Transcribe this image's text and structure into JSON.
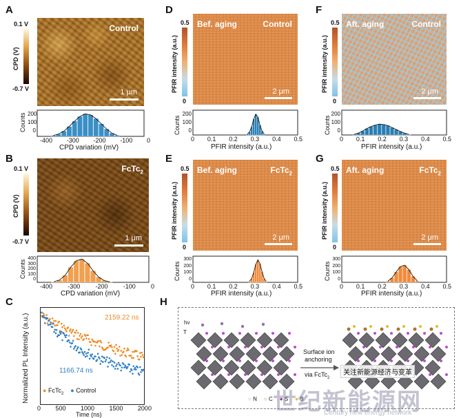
{
  "panels": {
    "A": {
      "letter": "A",
      "label": "Control",
      "scale": "1 μm",
      "cbar_top": "0.1 V",
      "cbar_bottom": "-0.7 V",
      "cbar_axis": "CPD (V)",
      "hist_ylabel": "Counts",
      "hist_xlabel": "CPD variation (mV)",
      "yticks": [
        "200",
        "100",
        "0"
      ],
      "xticks": [
        "-400",
        "-300",
        "-200",
        "-100",
        "0"
      ]
    },
    "B": {
      "letter": "B",
      "label": "FcTc",
      "label_sub": "2",
      "scale": "1 μm",
      "cbar_top": "0.1 V",
      "cbar_bottom": "-0.7 V",
      "cbar_axis": "CPD (V)",
      "hist_ylabel": "Counts",
      "hist_xlabel": "CPD variation (mV)",
      "yticks": [
        "400",
        "300",
        "200",
        "100",
        "0"
      ],
      "xticks": [
        "-400",
        "-300",
        "-200",
        "-100",
        "0"
      ]
    },
    "D": {
      "letter": "D",
      "label_left": "Bef. aging",
      "label_right": "Control",
      "scale": "2 μm",
      "cbar_top": "0.5",
      "cbar_bottom": "0",
      "cbar_axis": "PFIR intensity (a.u.)",
      "hist_ylabel": "Counts",
      "hist_xlabel": "PFIR intensity (a.u.)",
      "yticks": [
        "200",
        "100",
        "0"
      ],
      "xticks": [
        "0",
        "0.1",
        "0.2",
        "0.3",
        "0.4",
        "0.5"
      ]
    },
    "E": {
      "letter": "E",
      "label_left": "Bef. aging",
      "label_right": "FcTc",
      "label_sub": "2",
      "scale": "2 μm",
      "cbar_top": "0.5",
      "cbar_bottom": "0",
      "cbar_axis": "PFIR intensity (a.u.)",
      "hist_ylabel": "Counts",
      "hist_xlabel": "PFIR intensity (a.u.)",
      "yticks": [
        "300",
        "200",
        "100",
        "0"
      ],
      "xticks": [
        "0",
        "0.1",
        "0.2",
        "0.3",
        "0.4",
        "0.5"
      ]
    },
    "F": {
      "letter": "F",
      "label_left": "Aft. aging",
      "label_right": "Control",
      "scale": "2 μm",
      "cbar_top": "0.5",
      "cbar_bottom": "0",
      "cbar_axis": "PFIR intensity (a.u.)",
      "hist_ylabel": "Counts",
      "hist_xlabel": "PFIR intensity (a.u.)",
      "yticks": [
        "200",
        "100",
        "0"
      ],
      "xticks": [
        "0",
        "0.1",
        "0.2",
        "0.3",
        "0.4",
        "0.5"
      ]
    },
    "G": {
      "letter": "G",
      "label_left": "Aft. aging",
      "label_right": "FcTc",
      "label_sub": "2",
      "scale": "2 μm",
      "cbar_top": "0.5",
      "cbar_bottom": "0",
      "cbar_axis": "PFIR intensity (a.u.)",
      "hist_ylabel": "Counts",
      "hist_xlabel": "PFIR intensity (a.u.)",
      "yticks": [
        "300",
        "200",
        "100",
        "0"
      ],
      "xticks": [
        "0",
        "0.1",
        "0.2",
        "0.3",
        "0.4",
        "0.5"
      ]
    },
    "C": {
      "letter": "C",
      "ylabel": "Normalized PL Intensity (a.u.)",
      "xlabel": "Time (ns)",
      "xticks": [
        "0",
        "500",
        "1000",
        "1500",
        "2000"
      ],
      "annot_fctc": "2159.22 ns",
      "annot_control": "1166.74 ns",
      "legend_fctc": "FcTc",
      "legend_fctc_sub": "2",
      "legend_control": "Control"
    },
    "H": {
      "letter": "H",
      "arrow_label_top": "Surface ion",
      "arrow_label_mid": "anchoring",
      "arrow_label_bottom": "via FcTc",
      "arrow_label_sub": "2",
      "legend": [
        "N",
        "C",
        "S",
        "S"
      ],
      "hv": "hν",
      "T": "T"
    }
  },
  "watermark": {
    "cn_small": "关注新能源经济与变革",
    "cn_big": "世纪新能源网",
    "en": "Century new energy network"
  },
  "colors": {
    "fctc": "#f08a24",
    "control": "#2f7fc4",
    "hist_cpd_ctrl": "#3a8fc5",
    "hist_cpd_fctc": "#f0a050",
    "hist_pfir": "#2a7fb2",
    "hist_pfir_fctc": "#f08a3a"
  },
  "chart_data": [
    {
      "type": "bar",
      "panel": "A",
      "xlabel": "CPD variation (mV)",
      "ylabel": "Counts",
      "xlim": [
        -450,
        50
      ],
      "ylim": [
        0,
        250
      ],
      "x": [
        -375,
        -350,
        -325,
        -300,
        -275,
        -250,
        -225,
        -200,
        -175,
        -150,
        -125,
        -100,
        -75
      ],
      "values": [
        8,
        22,
        50,
        95,
        145,
        190,
        215,
        205,
        170,
        120,
        70,
        30,
        10
      ]
    },
    {
      "type": "bar",
      "panel": "B",
      "xlabel": "CPD variation (mV)",
      "ylabel": "Counts",
      "xlim": [
        -450,
        50
      ],
      "ylim": [
        0,
        450
      ],
      "x": [
        -375,
        -350,
        -325,
        -300,
        -275,
        -250,
        -225,
        -200,
        -175,
        -150,
        -125
      ],
      "values": [
        10,
        40,
        120,
        260,
        370,
        400,
        330,
        200,
        90,
        30,
        8
      ]
    },
    {
      "type": "bar",
      "panel": "D",
      "xlabel": "PFIR intensity (a.u.)",
      "ylabel": "Counts",
      "xlim": [
        0,
        0.5
      ],
      "ylim": [
        0,
        250
      ],
      "x": [
        0.26,
        0.27,
        0.28,
        0.29,
        0.3,
        0.31,
        0.32,
        0.33,
        0.34
      ],
      "values": [
        10,
        30,
        80,
        160,
        210,
        180,
        100,
        40,
        10
      ]
    },
    {
      "type": "bar",
      "panel": "E",
      "xlabel": "PFIR intensity (a.u.)",
      "ylabel": "Counts",
      "xlim": [
        0,
        0.5
      ],
      "ylim": [
        0,
        350
      ],
      "x": [
        0.27,
        0.28,
        0.29,
        0.3,
        0.31,
        0.32,
        0.33,
        0.34,
        0.35
      ],
      "values": [
        15,
        50,
        130,
        240,
        300,
        250,
        140,
        50,
        12
      ]
    },
    {
      "type": "bar",
      "panel": "F",
      "xlabel": "PFIR intensity (a.u.)",
      "ylabel": "Counts",
      "xlim": [
        0,
        0.5
      ],
      "ylim": [
        0,
        250
      ],
      "x": [
        0.06,
        0.08,
        0.1,
        0.12,
        0.14,
        0.16,
        0.18,
        0.2,
        0.22,
        0.24,
        0.26,
        0.28,
        0.3,
        0.32
      ],
      "values": [
        8,
        20,
        40,
        65,
        85,
        100,
        110,
        105,
        95,
        75,
        55,
        35,
        18,
        6
      ]
    },
    {
      "type": "bar",
      "panel": "G",
      "xlabel": "PFIR intensity (a.u.)",
      "ylabel": "Counts",
      "xlim": [
        0,
        0.5
      ],
      "ylim": [
        0,
        350
      ],
      "x": [
        0.22,
        0.24,
        0.26,
        0.28,
        0.3,
        0.32,
        0.34,
        0.36
      ],
      "values": [
        15,
        60,
        140,
        210,
        230,
        170,
        80,
        20
      ]
    },
    {
      "type": "scatter",
      "panel": "C",
      "xlabel": "Time (ns)",
      "ylabel": "Normalized PL Intensity (a.u.)",
      "xlim": [
        0,
        2000
      ],
      "series": [
        {
          "name": "FcTc2",
          "tau": 2159.22
        },
        {
          "name": "Control",
          "tau": 1166.74
        }
      ]
    }
  ]
}
